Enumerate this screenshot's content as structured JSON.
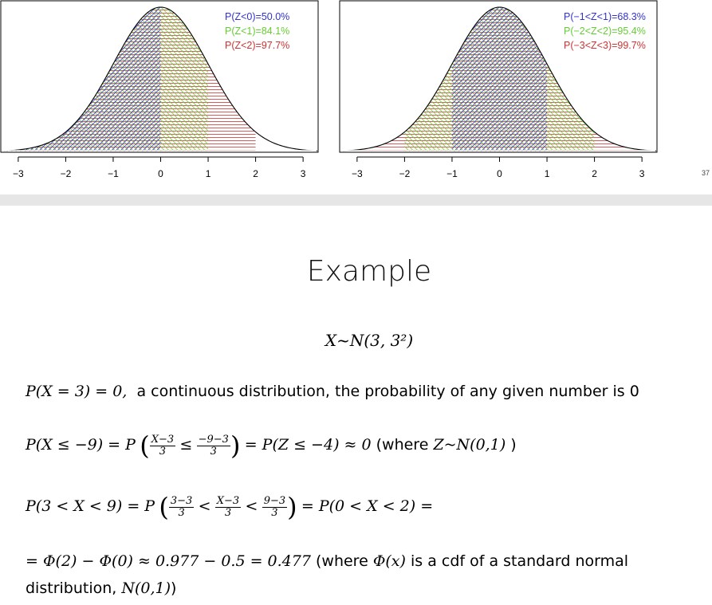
{
  "charts": {
    "left": {
      "legend": [
        "P(Z<0)=50.0%",
        "P(Z<1)=84.1%",
        "P(Z<2)=97.7%"
      ],
      "legend_colors": [
        "#3333cc",
        "#66cc33",
        "#cc3333"
      ]
    },
    "right": {
      "legend": [
        "P(−1<Z<1)=68.3%",
        "P(−2<Z<2)=95.4%",
        "P(−3<Z<3)=99.7%"
      ],
      "legend_colors": [
        "#3333cc",
        "#66cc33",
        "#cc3333"
      ]
    },
    "ticks": [
      "−3",
      "−2",
      "−1",
      "0",
      "1",
      "2",
      "3"
    ]
  },
  "chart_data": [
    {
      "type": "area",
      "curve": "standard normal density",
      "xlim": [
        -3.3,
        3.3
      ],
      "shaded_regions": [
        {
          "name": "P(Z<0)=50.0%",
          "from": -3.3,
          "to": 0,
          "color": "#3333cc"
        },
        {
          "name": "P(Z<1)=84.1%",
          "from": -3.3,
          "to": 1,
          "color": "#66cc33"
        },
        {
          "name": "P(Z<2)=97.7%",
          "from": -3.3,
          "to": 2,
          "color": "#cc3333"
        }
      ],
      "xticks": [
        -3,
        -2,
        -1,
        0,
        1,
        2,
        3
      ]
    },
    {
      "type": "area",
      "curve": "standard normal density",
      "xlim": [
        -3.3,
        3.3
      ],
      "shaded_regions": [
        {
          "name": "P(−1<Z<1)=68.3%",
          "from": -1,
          "to": 1,
          "color": "#3333cc"
        },
        {
          "name": "P(−2<Z<2)=95.4%",
          "from": -2,
          "to": 2,
          "color": "#66cc33"
        },
        {
          "name": "P(−3<Z<3)=99.7%",
          "from": -3,
          "to": 3,
          "color": "#cc3333"
        }
      ],
      "xticks": [
        -3,
        -2,
        -1,
        0,
        1,
        2,
        3
      ]
    }
  ],
  "page_number": "37",
  "slide": {
    "title": "Example",
    "distribution": "X~N(3, 3²)",
    "line1": {
      "math": "P(X = 3) = 0,",
      "text": "  a continuous distribution, the probability of any given number is 0"
    },
    "line2": {
      "a": "P(X ≤ −9) = P",
      "f1n": "X−3",
      "f1d": "3",
      "rel1": "≤",
      "f2n": "−9−3",
      "f2d": "3",
      "b": "= P(Z ≤ −4) ≈ 0",
      "c": " (where ",
      "d": "Z~N(0,1)",
      "e": " )"
    },
    "line3": {
      "a": "P(3 < X < 9) = P",
      "f1n": "3−3",
      "f1d": "3",
      "rel": "<",
      "f2n": "X−3",
      "f2d": "3",
      "f3n": "9−3",
      "f3d": "3",
      "b": "= P(0 < X < 2) ="
    },
    "line4": {
      "a": "= Φ(2) − Φ(0) ≈ 0.977 − 0.5 = 0.477",
      "b": " (where ",
      "c": "Φ(x)",
      "d": " is a cdf of a standard normal"
    },
    "line5": {
      "a": "distribution, ",
      "b": "N(0,1)",
      "c": ")"
    }
  }
}
